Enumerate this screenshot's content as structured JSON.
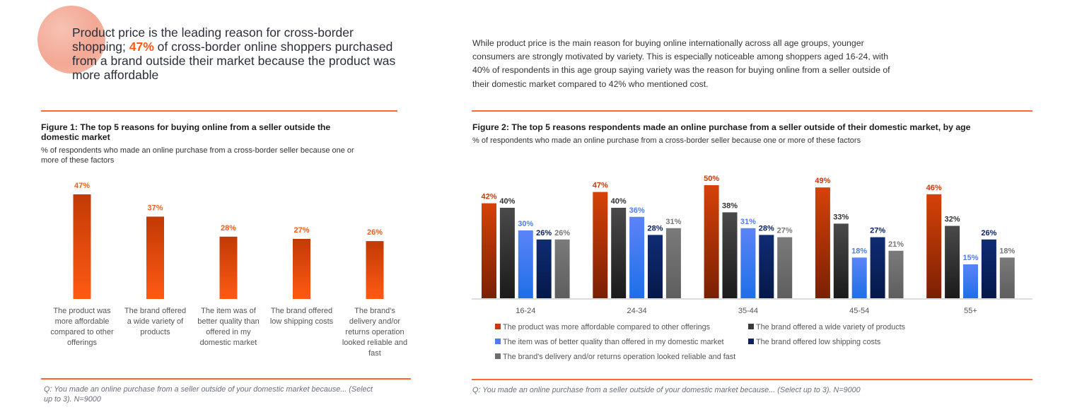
{
  "headline": {
    "pre": "Product price is the leading reason for cross-border shopping; ",
    "highlight": "47%",
    "post": " of cross-border online shoppers purchased from a brand outside their market because the product was more affordable"
  },
  "intro": "While product price is the main reason for buying online internationally across all age groups, younger consumers are strongly motivated by variety. This is especially noticeable among shoppers aged 16-24, with 40% of respondents in this age group saying variety was the reason for buying online from a seller outside of their domestic market compared to 42% who mentioned cost.",
  "figure1": {
    "title": "Figure 1: The top 5 reasons for buying online from a seller outside the domestic market",
    "subtitle": "% of respondents who made an online purchase from a cross-border seller because one or more of these factors",
    "footnote": "Q: You made an online purchase from a seller outside of your domestic market because... (Select up to 3). N=9000"
  },
  "figure2": {
    "title": "Figure 2: The top 5 reasons respondents made an online purchase from a seller outside of their domestic market, by age",
    "subtitle": "% of respondents who made an online purchase from a cross-border seller because one or more of these factors",
    "footnote": "Q: You made an online purchase from a seller outside of your domestic market because... (Select up to 3). N=9000"
  },
  "colors": {
    "accent": "#ff5a14",
    "rule": "#ff6a2a",
    "series": [
      "#c83a06",
      "#3a3a3a",
      "#4d7cf5",
      "#0b2160",
      "#6e6e6e"
    ],
    "label_colors": [
      "#c83a06",
      "#333333",
      "#4d7cf5",
      "#0b2160",
      "#777777"
    ]
  },
  "chart_data": [
    {
      "type": "bar",
      "title": "Figure 1: The top 5 reasons for buying online from a seller outside the domestic market",
      "categories": [
        [
          "The product was",
          "more affordable",
          "compared to other",
          "offerings"
        ],
        [
          "The brand offered",
          "a wide variety of",
          "products"
        ],
        [
          "The item was of",
          "better quality than",
          "offered in my",
          "domestic market"
        ],
        [
          "The brand offered",
          "low shipping costs"
        ],
        [
          "The brand's",
          "delivery and/or",
          "returns operation",
          "looked reliable and",
          "fast"
        ]
      ],
      "values": [
        47,
        37,
        28,
        27,
        26
      ],
      "value_labels": [
        "47%",
        "37%",
        "28%",
        "27%",
        "26%"
      ],
      "ylim": [
        0,
        47
      ],
      "grid": false,
      "legend": "none"
    },
    {
      "type": "bar",
      "title": "Figure 2: The top 5 reasons respondents made an online purchase from a seller outside of their domestic market, by age",
      "categories": [
        "16-24",
        "24-34",
        "35-44",
        "45-54",
        "55+"
      ],
      "series": [
        {
          "name": "The product was more affordable compared to other offerings",
          "values": [
            42,
            47,
            50,
            49,
            46
          ]
        },
        {
          "name": "The brand offered a wide variety of products",
          "values": [
            40,
            40,
            38,
            33,
            32
          ]
        },
        {
          "name": "The item was of better quality than offered in my domestic market",
          "values": [
            30,
            36,
            31,
            18,
            15
          ]
        },
        {
          "name": "The brand offered low shipping costs",
          "values": [
            26,
            28,
            28,
            27,
            26
          ]
        },
        {
          "name": "The brand's delivery and/or returns operation looked reliable and fast",
          "values": [
            26,
            31,
            27,
            21,
            18
          ]
        }
      ],
      "ylim": [
        0,
        50
      ],
      "grid": false,
      "legend": "bottom"
    }
  ]
}
